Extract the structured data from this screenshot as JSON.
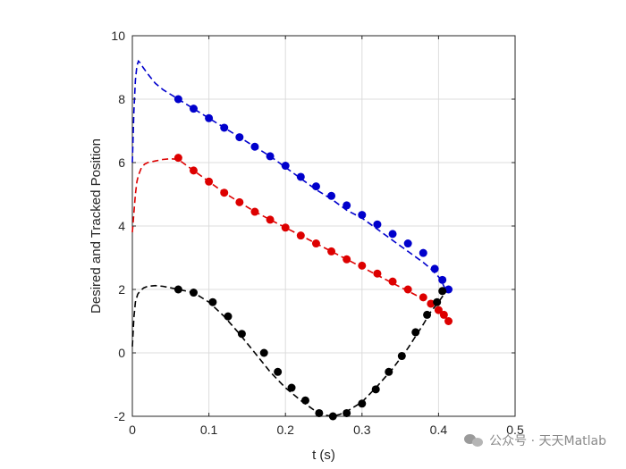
{
  "chart_data": {
    "type": "line",
    "title": "",
    "xlabel": "t (s)",
    "ylabel": "Desired and Tracked Position",
    "xlim": [
      0,
      0.5
    ],
    "ylim": [
      -2,
      10
    ],
    "xticks": [
      0,
      0.1,
      0.2,
      0.3,
      0.4,
      0.5
    ],
    "xtick_labels": [
      "0",
      "0.1",
      "0.2",
      "0.3",
      "0.4",
      "0.5"
    ],
    "yticks": [
      -2,
      0,
      2,
      4,
      6,
      8,
      10
    ],
    "ytick_labels": [
      "-2",
      "0",
      "2",
      "4",
      "6",
      "8",
      "10"
    ],
    "grid": true,
    "series": [
      {
        "color": "#0000cc",
        "line": {
          "x": [
            0.0,
            0.002,
            0.004,
            0.006,
            0.008,
            0.01,
            0.014,
            0.02,
            0.03,
            0.04,
            0.06,
            0.08,
            0.1,
            0.12,
            0.14,
            0.16,
            0.18,
            0.2,
            0.22,
            0.24,
            0.26,
            0.28,
            0.3,
            0.32,
            0.34,
            0.36,
            0.38,
            0.39,
            0.4,
            0.405,
            0.41
          ],
          "y": [
            6.0,
            7.6,
            8.6,
            9.05,
            9.2,
            9.15,
            9.0,
            8.8,
            8.5,
            8.3,
            8.0,
            7.7,
            7.4,
            7.1,
            6.8,
            6.5,
            6.2,
            5.85,
            5.5,
            5.15,
            4.85,
            4.5,
            4.25,
            3.9,
            3.55,
            3.2,
            2.85,
            2.65,
            2.4,
            2.2,
            1.95
          ]
        },
        "points": {
          "x": [
            0.06,
            0.08,
            0.1,
            0.12,
            0.14,
            0.16,
            0.18,
            0.2,
            0.22,
            0.24,
            0.26,
            0.28,
            0.3,
            0.32,
            0.34,
            0.36,
            0.38,
            0.395,
            0.405,
            0.413
          ],
          "y": [
            8.0,
            7.7,
            7.4,
            7.1,
            6.8,
            6.5,
            6.2,
            5.9,
            5.55,
            5.25,
            4.95,
            4.65,
            4.35,
            4.05,
            3.75,
            3.45,
            3.15,
            2.65,
            2.3,
            2.0
          ]
        }
      },
      {
        "color": "#dd0000",
        "line": {
          "x": [
            0.0,
            0.002,
            0.004,
            0.006,
            0.008,
            0.012,
            0.016,
            0.02,
            0.03,
            0.04,
            0.05,
            0.06,
            0.08,
            0.1,
            0.12,
            0.14,
            0.16,
            0.18,
            0.2,
            0.22,
            0.24,
            0.26,
            0.28,
            0.3,
            0.32,
            0.34,
            0.36,
            0.38,
            0.39,
            0.4,
            0.41,
            0.415
          ],
          "y": [
            3.8,
            4.4,
            5.0,
            5.4,
            5.6,
            5.85,
            5.95,
            6.0,
            6.05,
            6.1,
            6.12,
            6.1,
            5.75,
            5.4,
            5.05,
            4.75,
            4.45,
            4.2,
            3.95,
            3.7,
            3.45,
            3.2,
            2.95,
            2.7,
            2.45,
            2.2,
            1.95,
            1.7,
            1.55,
            1.35,
            1.1,
            1.0
          ]
        },
        "points": {
          "x": [
            0.06,
            0.08,
            0.1,
            0.12,
            0.14,
            0.16,
            0.18,
            0.2,
            0.22,
            0.24,
            0.26,
            0.28,
            0.3,
            0.32,
            0.34,
            0.36,
            0.38,
            0.39,
            0.4,
            0.407,
            0.413
          ],
          "y": [
            6.15,
            5.75,
            5.4,
            5.05,
            4.75,
            4.45,
            4.2,
            3.95,
            3.7,
            3.45,
            3.2,
            2.95,
            2.75,
            2.5,
            2.25,
            2.0,
            1.75,
            1.55,
            1.35,
            1.2,
            1.0
          ]
        }
      },
      {
        "color": "#000000",
        "line": {
          "x": [
            0.0,
            0.002,
            0.004,
            0.007,
            0.01,
            0.015,
            0.02,
            0.03,
            0.04,
            0.05,
            0.06,
            0.08,
            0.1,
            0.12,
            0.14,
            0.16,
            0.18,
            0.2,
            0.22,
            0.24,
            0.25,
            0.26,
            0.27,
            0.28,
            0.3,
            0.32,
            0.34,
            0.36,
            0.38,
            0.39,
            0.4,
            0.41
          ],
          "y": [
            0.2,
            1.1,
            1.6,
            1.85,
            1.95,
            2.05,
            2.1,
            2.12,
            2.1,
            2.05,
            2.0,
            1.9,
            1.6,
            1.15,
            0.6,
            0.0,
            -0.6,
            -1.1,
            -1.5,
            -1.85,
            -1.95,
            -2.0,
            -1.95,
            -1.85,
            -1.55,
            -1.05,
            -0.5,
            0.15,
            0.9,
            1.3,
            1.6,
            1.95
          ]
        },
        "points": {
          "x": [
            0.06,
            0.08,
            0.105,
            0.125,
            0.143,
            0.172,
            0.19,
            0.208,
            0.226,
            0.244,
            0.262,
            0.28,
            0.3,
            0.318,
            0.335,
            0.352,
            0.37,
            0.385,
            0.398,
            0.405
          ],
          "y": [
            2.0,
            1.9,
            1.6,
            1.15,
            0.6,
            0.0,
            -0.6,
            -1.1,
            -1.5,
            -1.9,
            -2.0,
            -1.9,
            -1.6,
            -1.15,
            -0.6,
            -0.1,
            0.65,
            1.2,
            1.6,
            1.95
          ]
        }
      }
    ]
  },
  "watermark": {
    "text": "公众号 · 天天Matlab",
    "icon": "wechat-icon"
  }
}
